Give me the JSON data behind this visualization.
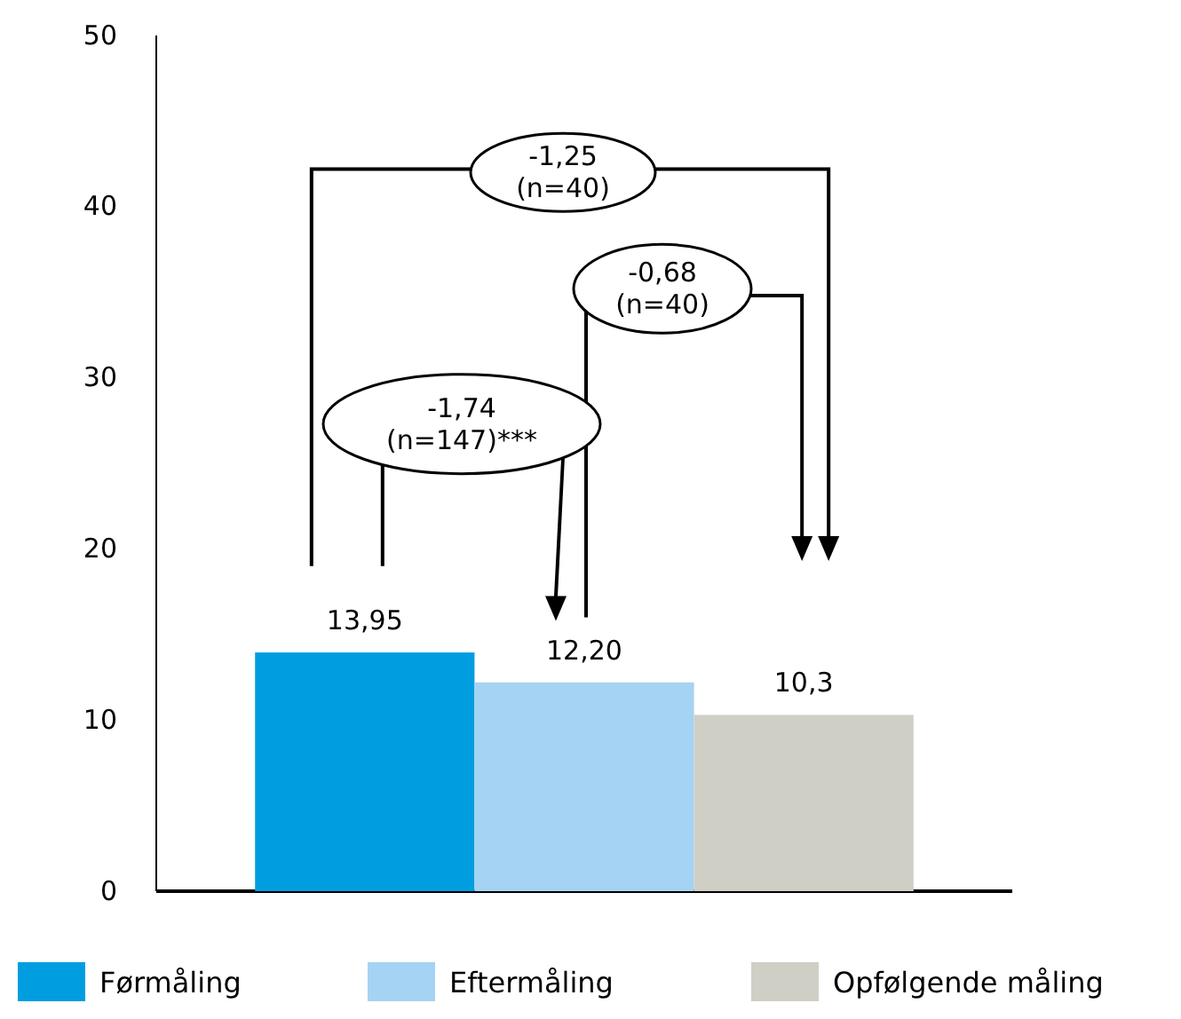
{
  "chart_data": {
    "type": "bar",
    "categories": [
      null
    ],
    "series": [
      {
        "name": "Førmåling",
        "color": "#009ee0",
        "values": [
          13.95
        ],
        "value_labels": [
          "13,95"
        ]
      },
      {
        "name": "Eftermåling",
        "color": "#a5d3f3",
        "values": [
          12.2
        ],
        "value_labels": [
          "12,20"
        ]
      },
      {
        "name": "Opfølgende måling",
        "color": "#cfcfc6",
        "values": [
          10.3
        ],
        "value_labels": [
          "10,3"
        ]
      }
    ],
    "ylim": [
      0,
      50
    ],
    "yticks": [
      0,
      10,
      20,
      30,
      40,
      50
    ],
    "grid": false,
    "legend": "bottom",
    "annotations": [
      "-1,25\n(n=40)",
      "-0,68\n(n=40)",
      "-1,74\n(n=147)***"
    ]
  }
}
